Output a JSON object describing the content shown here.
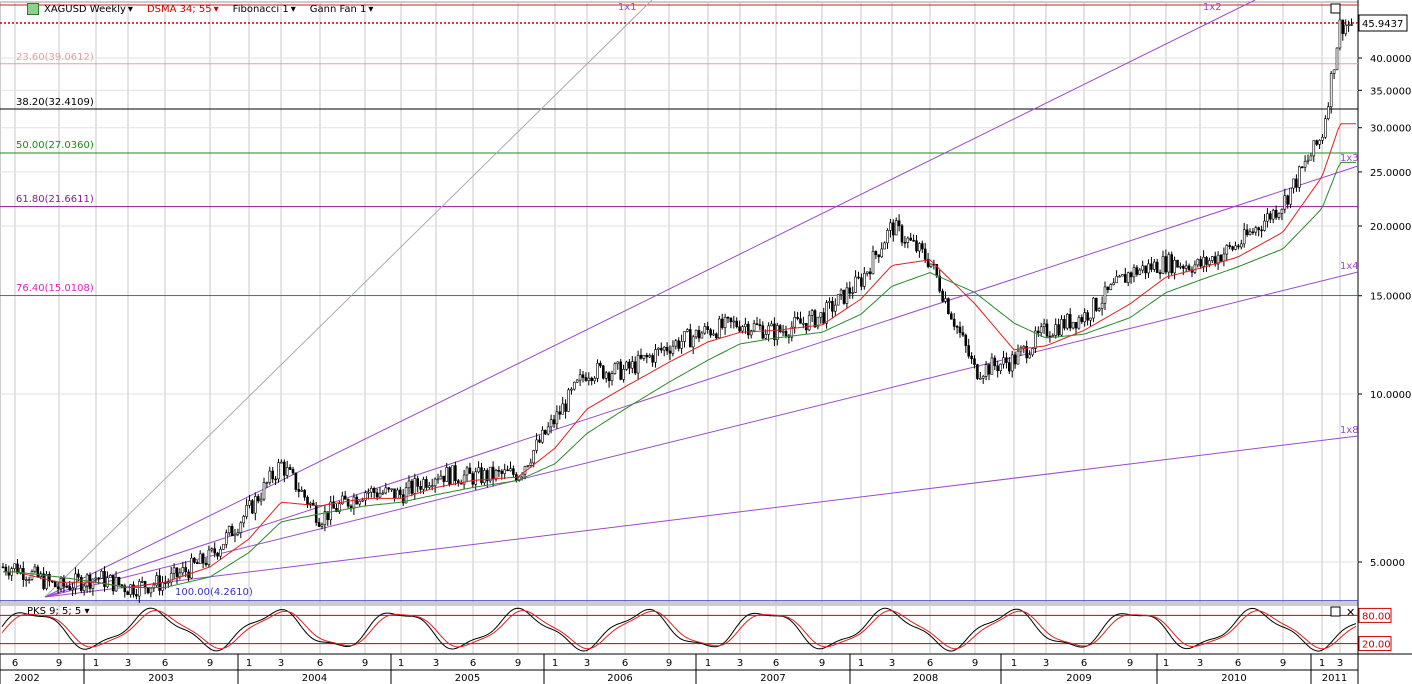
{
  "toolbar": {
    "symbol": "XAGUSD Weekly",
    "dsma": "DSMA 34; 55",
    "fib": "Fibonacci 1",
    "gann": "Gann Fan 1",
    "oscillator": "PKS 9; 5; 5"
  },
  "price_labels": [
    "40.0000",
    "35.0000",
    "30.0000",
    "25.0000",
    "20.0000",
    "15.0000",
    "10.0000",
    "5.0000"
  ],
  "last_price": "45.9437",
  "osc_labels": [
    "80.00",
    "20.00"
  ],
  "fib_levels": [
    {
      "label": "23.60(39.0612)",
      "value": 39.0612,
      "color": "#e8a0a0"
    },
    {
      "label": "38.20(32.4109)",
      "value": 32.4109,
      "color": "#000000"
    },
    {
      "label": "50.00(27.0360)",
      "value": 27.036,
      "color": "#1a8a1a"
    },
    {
      "label": "61.80(21.6611)",
      "value": 21.6611,
      "color": "#8b1a8b"
    },
    {
      "label": "76.40(15.0108)",
      "value": 15.0108,
      "color": "#e020c0"
    },
    {
      "label": "100.00(4.2610)",
      "value": 4.261,
      "color": "#3333cc"
    }
  ],
  "gann_labels": [
    "1x1",
    "1x2",
    "1x3",
    "1x4",
    "1x8"
  ],
  "month_ticks": [
    "6",
    "9",
    "1",
    "3",
    "6",
    "9",
    "1",
    "3",
    "6",
    "9",
    "1",
    "3",
    "6",
    "9",
    "1",
    "3",
    "6",
    "9",
    "1",
    "3",
    "6",
    "9",
    "1",
    "3",
    "6",
    "9",
    "1",
    "3",
    "6",
    "9",
    "1",
    "3",
    "6",
    "9",
    "1",
    "3"
  ],
  "year_labels": [
    "2002",
    "2003",
    "2004",
    "2005",
    "2006",
    "2007",
    "2008",
    "2009",
    "2010",
    "2011"
  ],
  "chart_data": {
    "type": "line",
    "title": "XAGUSD Weekly",
    "scale": "log",
    "ylim": [
      4.0,
      48.0
    ],
    "x": [
      "2002-06",
      "2002-09",
      "2003-01",
      "2003-03",
      "2003-06",
      "2003-09",
      "2004-01",
      "2004-03",
      "2004-06",
      "2004-09",
      "2005-01",
      "2005-03",
      "2005-06",
      "2005-09",
      "2006-01",
      "2006-03",
      "2006-06",
      "2006-09",
      "2007-01",
      "2007-03",
      "2007-06",
      "2007-09",
      "2008-01",
      "2008-03",
      "2008-06",
      "2008-09",
      "2009-01",
      "2009-03",
      "2009-06",
      "2009-09",
      "2010-01",
      "2010-03",
      "2010-06",
      "2010-09",
      "2011-01",
      "2011-03"
    ],
    "series": [
      {
        "name": "XAGUSD",
        "values": [
          4.9,
          4.5,
          4.7,
          4.5,
          4.6,
          5.1,
          6.2,
          7.5,
          6.0,
          6.7,
          6.6,
          7.2,
          7.1,
          7.2,
          9.0,
          11.0,
          11.0,
          12.2,
          13.0,
          13.4,
          12.9,
          13.8,
          16.0,
          20.0,
          17.3,
          11.0,
          11.5,
          13.0,
          13.8,
          16.5,
          17.2,
          17.0,
          18.5,
          22.0,
          29.0,
          45.9
        ]
      },
      {
        "name": "DSMA 34",
        "values": [
          4.8,
          4.6,
          4.6,
          4.5,
          4.6,
          4.9,
          5.5,
          6.4,
          6.3,
          6.5,
          6.5,
          6.8,
          7.0,
          7.1,
          8.0,
          9.4,
          10.3,
          11.4,
          12.4,
          12.9,
          13.0,
          13.3,
          14.8,
          17.0,
          17.4,
          14.5,
          12.0,
          12.2,
          13.0,
          14.5,
          16.2,
          16.8,
          17.6,
          19.5,
          24.5,
          30.5
        ]
      },
      {
        "name": "DSMA 55",
        "values": [
          4.8,
          4.7,
          4.6,
          4.5,
          4.5,
          4.7,
          5.2,
          5.9,
          6.1,
          6.3,
          6.4,
          6.6,
          6.8,
          7.0,
          7.5,
          8.5,
          9.4,
          10.5,
          11.5,
          12.3,
          12.6,
          12.9,
          13.9,
          15.6,
          16.5,
          15.2,
          13.4,
          12.6,
          12.8,
          13.7,
          15.2,
          16.0,
          16.9,
          18.2,
          21.5,
          26.0
        ]
      }
    ]
  },
  "colors": {
    "price": "#000000",
    "dsma_fast": "#e02020",
    "dsma_slow": "#2a8a2a",
    "gann": "#9a4acc",
    "grid": "#c8c8c8"
  }
}
